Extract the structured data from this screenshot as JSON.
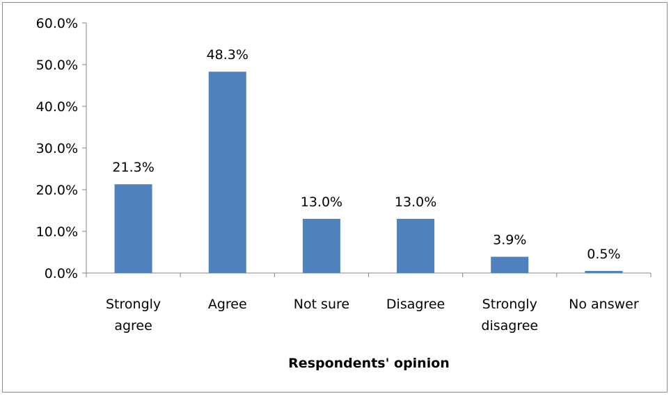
{
  "chart_data": {
    "type": "bar",
    "categories": [
      [
        "Strongly",
        "agree"
      ],
      [
        "Agree"
      ],
      [
        "Not sure"
      ],
      [
        "Disagree"
      ],
      [
        "Strongly",
        "disagree"
      ],
      [
        "No answer"
      ]
    ],
    "values": [
      21.3,
      48.3,
      13.0,
      13.0,
      3.9,
      0.5
    ],
    "data_labels": [
      "21.3%",
      "48.3%",
      "13.0%",
      "13.0%",
      "3.9%",
      "0.5%"
    ],
    "y_ticks": [
      "0.0%",
      "10.0%",
      "20.0%",
      "30.0%",
      "40.0%",
      "50.0%",
      "60.0%"
    ],
    "ylim": [
      0,
      60
    ],
    "xlabel": "Respondents' opinion",
    "ylabel": "",
    "title": "",
    "grid": false,
    "legend": "none",
    "bar_color": "#4f81bd"
  }
}
